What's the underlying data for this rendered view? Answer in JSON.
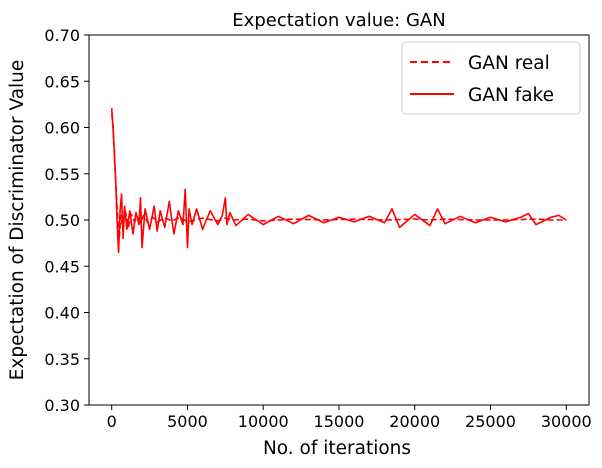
{
  "chart_data": {
    "type": "line",
    "title": "Expectation value: GAN",
    "xlabel": "No. of iterations",
    "ylabel": "Expectation of Discriminator Value",
    "xlim": [
      -1500,
      31500
    ],
    "ylim": [
      0.3,
      0.7
    ],
    "xticks": [
      0,
      5000,
      10000,
      15000,
      20000,
      25000,
      30000
    ],
    "xtick_labels": [
      "0",
      "5000",
      "10000",
      "15000",
      "20000",
      "25000",
      "30000"
    ],
    "yticks": [
      0.3,
      0.35,
      0.4,
      0.45,
      0.5,
      0.55,
      0.6,
      0.65,
      0.7
    ],
    "ytick_labels": [
      "0.30",
      "0.35",
      "0.40",
      "0.45",
      "0.50",
      "0.55",
      "0.60",
      "0.65",
      "0.70"
    ],
    "grid": false,
    "legend_position": "top-right",
    "series": [
      {
        "name": "GAN real",
        "color": "#ff0000",
        "style": "dashed",
        "x": [
          0,
          100,
          200,
          300,
          400,
          500,
          600,
          700,
          900,
          1100,
          1300,
          1500,
          1700,
          1900,
          2100,
          2400,
          2700,
          3000,
          3500,
          4000,
          4500,
          5000,
          6000,
          7000,
          7500,
          8000,
          9000,
          10000,
          12000,
          14000,
          16000,
          18000,
          20000,
          21000,
          22000,
          24000,
          26000,
          28000,
          29000,
          30000
        ],
        "y": [
          0.615,
          0.6,
          0.56,
          0.53,
          0.5,
          0.48,
          0.505,
          0.495,
          0.51,
          0.492,
          0.506,
          0.498,
          0.503,
          0.497,
          0.505,
          0.497,
          0.503,
          0.498,
          0.502,
          0.499,
          0.503,
          0.498,
          0.502,
          0.499,
          0.502,
          0.5,
          0.501,
          0.499,
          0.501,
          0.5,
          0.501,
          0.5,
          0.501,
          0.5,
          0.501,
          0.5,
          0.5,
          0.501,
          0.5,
          0.5
        ]
      },
      {
        "name": "GAN fake",
        "color": "#ff0000",
        "style": "solid",
        "x": [
          0,
          80,
          150,
          250,
          350,
          450,
          550,
          650,
          750,
          850,
          1000,
          1200,
          1400,
          1600,
          1800,
          1900,
          2000,
          2200,
          2500,
          2800,
          3000,
          3200,
          3500,
          3800,
          4100,
          4400,
          4700,
          4850,
          5000,
          5100,
          5300,
          5600,
          6000,
          6500,
          7000,
          7300,
          7500,
          7600,
          7800,
          8200,
          9000,
          10000,
          11000,
          12000,
          13000,
          14000,
          15000,
          16000,
          17000,
          18000,
          18500,
          19000,
          20000,
          21000,
          21500,
          22000,
          23000,
          24000,
          25000,
          26000,
          27000,
          27500,
          28000,
          29000,
          29500,
          30000
        ],
        "y": [
          0.621,
          0.6,
          0.58,
          0.548,
          0.5,
          0.465,
          0.51,
          0.528,
          0.48,
          0.515,
          0.49,
          0.51,
          0.485,
          0.508,
          0.495,
          0.524,
          0.47,
          0.512,
          0.49,
          0.515,
          0.488,
          0.51,
          0.492,
          0.52,
          0.485,
          0.51,
          0.495,
          0.533,
          0.47,
          0.512,
          0.495,
          0.512,
          0.49,
          0.51,
          0.495,
          0.505,
          0.524,
          0.495,
          0.508,
          0.494,
          0.506,
          0.495,
          0.504,
          0.496,
          0.505,
          0.497,
          0.503,
          0.498,
          0.504,
          0.497,
          0.512,
          0.492,
          0.506,
          0.494,
          0.512,
          0.496,
          0.504,
          0.497,
          0.503,
          0.498,
          0.503,
          0.507,
          0.495,
          0.503,
          0.505,
          0.5
        ]
      }
    ]
  }
}
